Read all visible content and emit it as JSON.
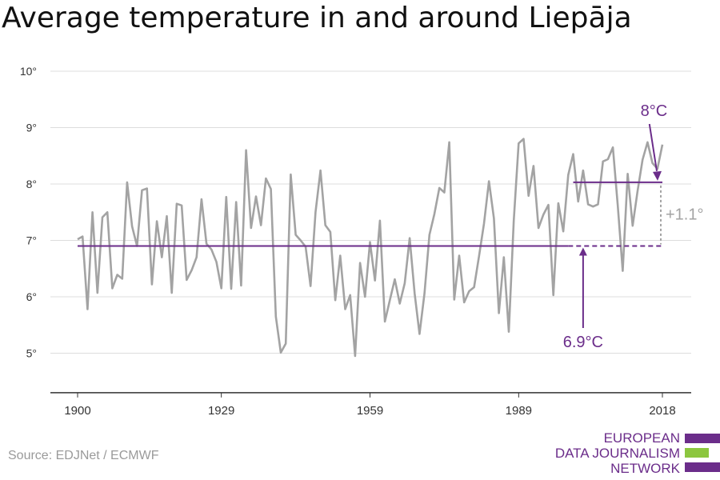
{
  "title": "Average temperature in and around Liepāja",
  "source": "Source: EDJNet / ECMWF",
  "logo": {
    "lines": [
      "EUROPEAN",
      "DATA JOURNALISM",
      "NETWORK"
    ]
  },
  "colors": {
    "line": "#a3a3a3",
    "accent": "#6b2d8a",
    "diff": "#a3a3a3",
    "grid": "#dddddd",
    "logo_green": "#8cc63f"
  },
  "chart_data": {
    "type": "line",
    "title": "Average temperature in and around Liepāja",
    "xlim": [
      1900,
      2018
    ],
    "ylim": [
      4.3,
      10
    ],
    "x_ticks": [
      1900,
      1929,
      1959,
      1989,
      2018
    ],
    "y_ticks": [
      {
        "value": 5,
        "label": "5°"
      },
      {
        "value": 6,
        "label": "6°"
      },
      {
        "value": 7,
        "label": "7°"
      },
      {
        "value": 8,
        "label": "8°"
      },
      {
        "value": 9,
        "label": "9°"
      },
      {
        "value": 10,
        "label": "10°"
      }
    ],
    "grid": true,
    "x_start": 1900,
    "values": [
      7.02,
      7.07,
      5.78,
      7.5,
      6.07,
      7.41,
      7.5,
      6.15,
      6.39,
      6.32,
      8.03,
      7.25,
      6.9,
      7.89,
      7.92,
      6.22,
      7.34,
      6.7,
      7.43,
      6.07,
      7.65,
      7.62,
      6.3,
      6.47,
      6.7,
      7.73,
      6.94,
      6.84,
      6.62,
      6.15,
      7.77,
      6.14,
      7.68,
      6.2,
      8.6,
      7.22,
      7.78,
      7.27,
      8.1,
      7.91,
      5.65,
      5.01,
      5.17,
      8.17,
      7.1,
      7.0,
      6.89,
      6.19,
      7.5,
      8.24,
      7.27,
      7.15,
      5.94,
      6.73,
      5.78,
      6.03,
      4.95,
      6.6,
      6.0,
      6.97,
      6.29,
      7.35,
      5.56,
      5.94,
      6.31,
      5.88,
      6.24,
      7.04,
      6.06,
      5.34,
      6.06,
      7.1,
      7.47,
      7.93,
      7.85,
      8.74,
      5.95,
      6.73,
      5.9,
      6.1,
      6.17,
      6.72,
      7.3,
      8.05,
      7.39,
      5.71,
      6.7,
      5.38,
      7.35,
      8.72,
      8.8,
      7.79,
      8.32,
      7.22,
      7.46,
      7.63,
      6.03,
      7.66,
      7.16,
      8.16,
      8.53,
      7.69,
      8.24,
      7.64,
      7.6,
      7.64,
      8.4,
      8.44,
      8.65,
      7.62,
      6.46,
      8.18,
      7.26,
      7.88,
      8.43,
      8.74,
      8.37,
      8.27,
      8.7
    ],
    "annotations": {
      "baseline": {
        "label": "6.9°C",
        "value": 6.9
      },
      "recent": {
        "label": "8°C",
        "value": 8.03
      },
      "difference": {
        "label": "+1.1°"
      }
    }
  }
}
